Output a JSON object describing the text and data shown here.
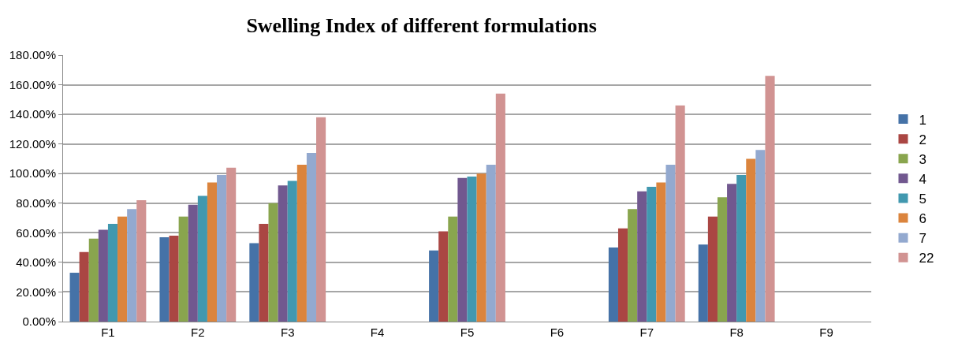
{
  "chart_data": {
    "type": "bar",
    "title": "Swelling Index of different formulations",
    "categories": [
      "F1",
      "F2",
      "F3",
      "F4",
      "F5",
      "F6",
      "F7",
      "F8",
      "F9"
    ],
    "series": [
      {
        "name": "1",
        "color": "#4572a7",
        "values": [
          33,
          57,
          53,
          null,
          48,
          null,
          50,
          52,
          null
        ]
      },
      {
        "name": "2",
        "color": "#aa4643",
        "values": [
          47,
          58,
          66,
          null,
          61,
          null,
          63,
          71,
          null
        ]
      },
      {
        "name": "3",
        "color": "#89a54e",
        "values": [
          56,
          71,
          80,
          null,
          71,
          null,
          76,
          84,
          null
        ]
      },
      {
        "name": "4",
        "color": "#71588f",
        "values": [
          62,
          79,
          92,
          null,
          97,
          null,
          88,
          93,
          null
        ]
      },
      {
        "name": "5",
        "color": "#4198af",
        "values": [
          66,
          85,
          95,
          null,
          98,
          null,
          91,
          99,
          null
        ]
      },
      {
        "name": "6",
        "color": "#db843d",
        "values": [
          71,
          94,
          106,
          null,
          100,
          null,
          94,
          110,
          null
        ]
      },
      {
        "name": "7",
        "color": "#93a9cf",
        "values": [
          76,
          99,
          114,
          null,
          106,
          null,
          106,
          116,
          null
        ]
      },
      {
        "name": "22",
        "color": "#d19392",
        "values": [
          82,
          104,
          138,
          null,
          154,
          null,
          146,
          166,
          null
        ]
      }
    ],
    "ylim": [
      0,
      180
    ],
    "yticks": [
      {
        "value": 0,
        "label": "0.00%"
      },
      {
        "value": 20,
        "label": "20.00%"
      },
      {
        "value": 40,
        "label": "40.00%"
      },
      {
        "value": 60,
        "label": "60.00%"
      },
      {
        "value": 80,
        "label": "80.00%"
      },
      {
        "value": 100,
        "label": "100.00%"
      },
      {
        "value": 120,
        "label": "120.00%"
      },
      {
        "value": 140,
        "label": "140.00%"
      },
      {
        "value": 160,
        "label": "160.00%"
      },
      {
        "value": 180,
        "label": "180.00%"
      }
    ],
    "grid": "y",
    "legend": "right"
  }
}
